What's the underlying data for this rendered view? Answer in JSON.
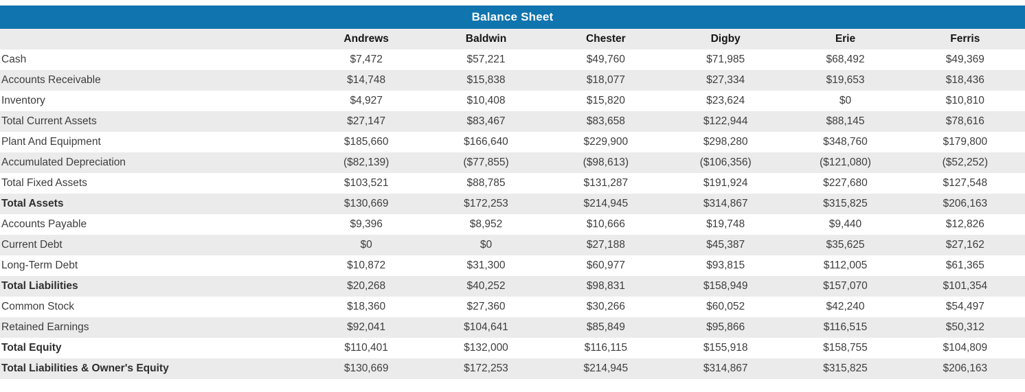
{
  "title": "Balance Sheet",
  "colors": {
    "title_bar_bg": "#1074ae",
    "title_text": "#ffffff",
    "stripe_bg": "#ebebeb",
    "body_text": "#3d3d3d"
  },
  "table": {
    "columns": [
      "Andrews",
      "Baldwin",
      "Chester",
      "Digby",
      "Erie",
      "Ferris"
    ],
    "rows": [
      {
        "label": "Cash",
        "bold": false,
        "values": [
          "$7,472",
          "$57,221",
          "$49,760",
          "$71,985",
          "$68,492",
          "$49,369"
        ]
      },
      {
        "label": "Accounts Receivable",
        "bold": false,
        "values": [
          "$14,748",
          "$15,838",
          "$18,077",
          "$27,334",
          "$19,653",
          "$18,436"
        ]
      },
      {
        "label": "Inventory",
        "bold": false,
        "values": [
          "$4,927",
          "$10,408",
          "$15,820",
          "$23,624",
          "$0",
          "$10,810"
        ]
      },
      {
        "label": "Total Current Assets",
        "bold": false,
        "values": [
          "$27,147",
          "$83,467",
          "$83,658",
          "$122,944",
          "$88,145",
          "$78,616"
        ]
      },
      {
        "label": "Plant And Equipment",
        "bold": false,
        "values": [
          "$185,660",
          "$166,640",
          "$229,900",
          "$298,280",
          "$348,760",
          "$179,800"
        ]
      },
      {
        "label": "Accumulated Depreciation",
        "bold": false,
        "values": [
          "($82,139)",
          "($77,855)",
          "($98,613)",
          "($106,356)",
          "($121,080)",
          "($52,252)"
        ]
      },
      {
        "label": "Total Fixed Assets",
        "bold": false,
        "values": [
          "$103,521",
          "$88,785",
          "$131,287",
          "$191,924",
          "$227,680",
          "$127,548"
        ]
      },
      {
        "label": "Total Assets",
        "bold": true,
        "values": [
          "$130,669",
          "$172,253",
          "$214,945",
          "$314,867",
          "$315,825",
          "$206,163"
        ]
      },
      {
        "label": "Accounts Payable",
        "bold": false,
        "values": [
          "$9,396",
          "$8,952",
          "$10,666",
          "$19,748",
          "$9,440",
          "$12,826"
        ]
      },
      {
        "label": "Current Debt",
        "bold": false,
        "values": [
          "$0",
          "$0",
          "$27,188",
          "$45,387",
          "$35,625",
          "$27,162"
        ]
      },
      {
        "label": "Long-Term Debt",
        "bold": false,
        "values": [
          "$10,872",
          "$31,300",
          "$60,977",
          "$93,815",
          "$112,005",
          "$61,365"
        ]
      },
      {
        "label": "Total Liabilities",
        "bold": true,
        "values": [
          "$20,268",
          "$40,252",
          "$98,831",
          "$158,949",
          "$157,070",
          "$101,354"
        ]
      },
      {
        "label": "Common Stock",
        "bold": false,
        "values": [
          "$18,360",
          "$27,360",
          "$30,266",
          "$60,052",
          "$42,240",
          "$54,497"
        ]
      },
      {
        "label": "Retained Earnings",
        "bold": false,
        "values": [
          "$92,041",
          "$104,641",
          "$85,849",
          "$95,866",
          "$116,515",
          "$50,312"
        ]
      },
      {
        "label": "Total Equity",
        "bold": true,
        "values": [
          "$110,401",
          "$132,000",
          "$116,115",
          "$155,918",
          "$158,755",
          "$104,809"
        ]
      },
      {
        "label": "Total Liabilities & Owner's Equity",
        "bold": true,
        "values": [
          "$130,669",
          "$172,253",
          "$214,945",
          "$314,867",
          "$315,825",
          "$206,163"
        ]
      }
    ]
  }
}
